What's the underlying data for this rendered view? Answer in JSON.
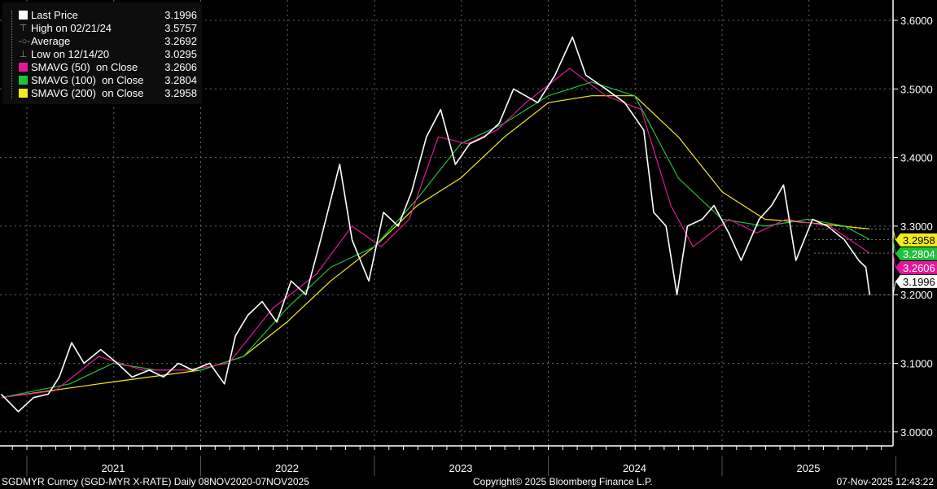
{
  "legend": {
    "items": [
      {
        "label": "Last Price",
        "value": "3.1996",
        "color": "#ffffff",
        "kind": "swatch"
      },
      {
        "label": "High on 02/21/24",
        "value": "3.5757",
        "kind": "high-marker"
      },
      {
        "label": "Average",
        "value": "3.2692",
        "kind": "average-marker"
      },
      {
        "label": "Low on 12/14/20",
        "value": "3.0295",
        "kind": "low-marker"
      },
      {
        "label": "SMAVG (50)  on Close",
        "value": "3.2606",
        "color": "#e6169b",
        "kind": "swatch"
      },
      {
        "label": "SMAVG (100)  on Close",
        "value": "3.2804",
        "color": "#1fc23a",
        "kind": "swatch"
      },
      {
        "label": "SMAVG (200)  on Close",
        "value": "3.2958",
        "color": "#f5ec1b",
        "kind": "swatch"
      }
    ]
  },
  "footer": {
    "left": "SGDMYR Curncy (SGD-MYR X-RATE) Daily 08NOV2020-07NOV2025",
    "center": "Copyright© 2025 Bloomberg Finance L.P.",
    "right": "07-Nov-2025 12:43:22"
  },
  "chart_data": {
    "type": "line",
    "x_range": [
      "2020-11-08",
      "2025-11-07"
    ],
    "ylim": [
      2.98,
      3.62
    ],
    "y_ticks": [
      "3.0000",
      "3.1000",
      "3.2000",
      "3.3000",
      "3.4000",
      "3.5000",
      "3.6000"
    ],
    "x_tick_labels": [
      "2021",
      "2022",
      "2023",
      "2024",
      "2025"
    ],
    "grid": true,
    "y_axis_side": "right",
    "legend_placement": "top-left",
    "last_value_tags": [
      {
        "value": "3.2958",
        "color": "#f5ec1b",
        "text_color": "#000000"
      },
      {
        "value": "3.2804",
        "color": "#1fc23a",
        "text_color": "#ffffff"
      },
      {
        "value": "3.2606",
        "color": "#e6169b",
        "text_color": "#ffffff"
      },
      {
        "value": "3.1996",
        "color": "#ffffff",
        "text_color": "#000000"
      }
    ],
    "series": [
      {
        "name": "Last Price",
        "color": "#ffffff",
        "points": [
          [
            "2020-11-08",
            3.055
          ],
          [
            "2020-12-14",
            3.0295
          ],
          [
            "2021-01-15",
            3.05
          ],
          [
            "2021-02-15",
            3.055
          ],
          [
            "2021-03-10",
            3.08
          ],
          [
            "2021-04-05",
            3.13
          ],
          [
            "2021-05-01",
            3.1
          ],
          [
            "2021-06-05",
            3.12
          ],
          [
            "2021-07-10",
            3.1
          ],
          [
            "2021-08-10",
            3.08
          ],
          [
            "2021-09-15",
            3.09
          ],
          [
            "2021-10-15",
            3.08
          ],
          [
            "2021-11-15",
            3.1
          ],
          [
            "2021-12-15",
            3.09
          ],
          [
            "2022-01-20",
            3.1
          ],
          [
            "2022-02-20",
            3.07
          ],
          [
            "2022-03-15",
            3.14
          ],
          [
            "2022-04-10",
            3.17
          ],
          [
            "2022-05-10",
            3.19
          ],
          [
            "2022-06-10",
            3.16
          ],
          [
            "2022-07-10",
            3.22
          ],
          [
            "2022-08-10",
            3.2
          ],
          [
            "2022-09-10",
            3.28
          ],
          [
            "2022-10-20",
            3.39
          ],
          [
            "2022-11-15",
            3.28
          ],
          [
            "2022-12-20",
            3.22
          ],
          [
            "2023-01-20",
            3.32
          ],
          [
            "2023-02-20",
            3.3
          ],
          [
            "2023-03-20",
            3.35
          ],
          [
            "2023-04-20",
            3.43
          ],
          [
            "2023-05-20",
            3.47
          ],
          [
            "2023-06-20",
            3.39
          ],
          [
            "2023-07-20",
            3.42
          ],
          [
            "2023-08-20",
            3.43
          ],
          [
            "2023-09-20",
            3.45
          ],
          [
            "2023-10-20",
            3.5
          ],
          [
            "2023-12-10",
            3.48
          ],
          [
            "2024-01-15",
            3.52
          ],
          [
            "2024-02-21",
            3.5757
          ],
          [
            "2024-03-20",
            3.52
          ],
          [
            "2024-05-01",
            3.5
          ],
          [
            "2024-06-10",
            3.48
          ],
          [
            "2024-07-20",
            3.44
          ],
          [
            "2024-08-10",
            3.32
          ],
          [
            "2024-09-05",
            3.3
          ],
          [
            "2024-09-28",
            3.2
          ],
          [
            "2024-10-20",
            3.3
          ],
          [
            "2024-11-20",
            3.31
          ],
          [
            "2024-12-15",
            3.33
          ],
          [
            "2025-01-15",
            3.29
          ],
          [
            "2025-02-10",
            3.25
          ],
          [
            "2025-03-20",
            3.31
          ],
          [
            "2025-04-15",
            3.33
          ],
          [
            "2025-05-10",
            3.36
          ],
          [
            "2025-06-05",
            3.25
          ],
          [
            "2025-07-10",
            3.31
          ],
          [
            "2025-08-10",
            3.3
          ],
          [
            "2025-09-15",
            3.28
          ],
          [
            "2025-10-15",
            3.25
          ],
          [
            "2025-10-30",
            3.24
          ],
          [
            "2025-11-07",
            3.1996
          ]
        ]
      },
      {
        "name": "SMAVG (50)  on Close",
        "color": "#e6169b",
        "points": [
          [
            "2020-11-08",
            3.05
          ],
          [
            "2021-03-01",
            3.06
          ],
          [
            "2021-06-01",
            3.11
          ],
          [
            "2021-09-01",
            3.09
          ],
          [
            "2021-12-01",
            3.09
          ],
          [
            "2022-03-01",
            3.1
          ],
          [
            "2022-06-01",
            3.18
          ],
          [
            "2022-09-01",
            3.23
          ],
          [
            "2022-11-15",
            3.3
          ],
          [
            "2023-01-15",
            3.27
          ],
          [
            "2023-03-15",
            3.31
          ],
          [
            "2023-05-15",
            3.43
          ],
          [
            "2023-07-15",
            3.42
          ],
          [
            "2023-09-15",
            3.44
          ],
          [
            "2023-11-15",
            3.48
          ],
          [
            "2024-02-15",
            3.53
          ],
          [
            "2024-05-01",
            3.49
          ],
          [
            "2024-07-15",
            3.47
          ],
          [
            "2024-09-15",
            3.33
          ],
          [
            "2024-11-01",
            3.27
          ],
          [
            "2025-01-15",
            3.31
          ],
          [
            "2025-03-15",
            3.29
          ],
          [
            "2025-05-15",
            3.31
          ],
          [
            "2025-08-15",
            3.3
          ],
          [
            "2025-11-07",
            3.2606
          ]
        ]
      },
      {
        "name": "SMAVG (100)  on Close",
        "color": "#1fc23a",
        "points": [
          [
            "2020-11-08",
            3.05
          ],
          [
            "2021-04-01",
            3.07
          ],
          [
            "2021-07-01",
            3.1
          ],
          [
            "2021-10-01",
            3.09
          ],
          [
            "2022-01-01",
            3.09
          ],
          [
            "2022-04-01",
            3.11
          ],
          [
            "2022-07-01",
            3.18
          ],
          [
            "2022-10-01",
            3.24
          ],
          [
            "2023-01-01",
            3.27
          ],
          [
            "2023-04-01",
            3.34
          ],
          [
            "2023-07-01",
            3.42
          ],
          [
            "2023-10-01",
            3.45
          ],
          [
            "2024-01-01",
            3.49
          ],
          [
            "2024-04-01",
            3.51
          ],
          [
            "2024-07-01",
            3.49
          ],
          [
            "2024-10-01",
            3.37
          ],
          [
            "2025-01-01",
            3.31
          ],
          [
            "2025-04-01",
            3.3
          ],
          [
            "2025-07-01",
            3.31
          ],
          [
            "2025-09-15",
            3.3
          ],
          [
            "2025-11-07",
            3.2804
          ]
        ]
      },
      {
        "name": "SMAVG (200)  on Close",
        "color": "#f5ec1b",
        "points": [
          [
            "2020-11-08",
            3.05
          ],
          [
            "2021-06-01",
            3.07
          ],
          [
            "2022-01-01",
            3.09
          ],
          [
            "2022-04-01",
            3.11
          ],
          [
            "2022-07-01",
            3.16
          ],
          [
            "2022-10-01",
            3.22
          ],
          [
            "2023-01-01",
            3.27
          ],
          [
            "2023-04-01",
            3.33
          ],
          [
            "2023-07-01",
            3.37
          ],
          [
            "2023-10-01",
            3.43
          ],
          [
            "2024-01-01",
            3.48
          ],
          [
            "2024-04-01",
            3.49
          ],
          [
            "2024-07-01",
            3.49
          ],
          [
            "2024-10-01",
            3.43
          ],
          [
            "2025-01-01",
            3.35
          ],
          [
            "2025-04-01",
            3.31
          ],
          [
            "2025-07-01",
            3.305
          ],
          [
            "2025-11-07",
            3.2958
          ]
        ]
      }
    ]
  }
}
